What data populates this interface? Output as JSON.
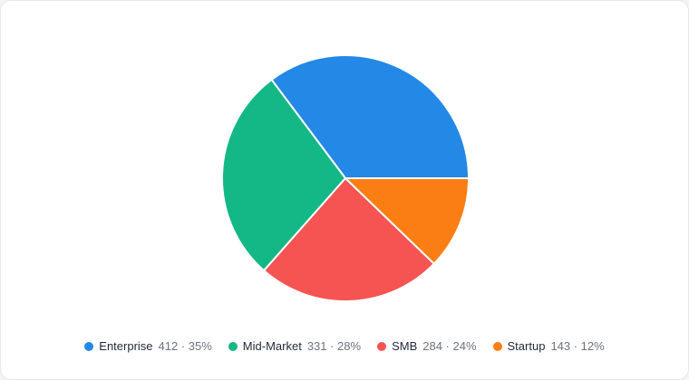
{
  "chart_data": {
    "type": "pie",
    "categories": [
      "Enterprise",
      "Mid-Market",
      "SMB",
      "Startup"
    ],
    "values": [
      412,
      331,
      284,
      143
    ],
    "value_labels": [
      "412 · 35%",
      "331 · 28%",
      "284 · 24%",
      "143 · 12%"
    ],
    "colors": [
      "#2388e6",
      "#14b886",
      "#f65353",
      "#fb7e14"
    ],
    "start_angle": 0,
    "direction": "counterclockwise",
    "legend": "bottom"
  }
}
